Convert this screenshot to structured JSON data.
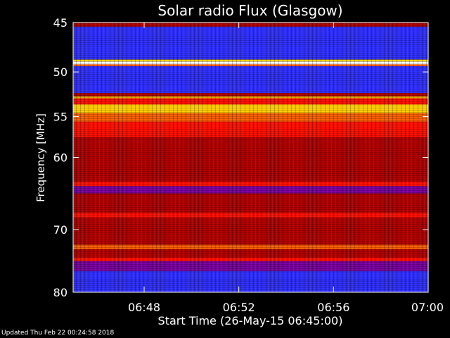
{
  "footer": "Updated Thu Feb 22 00:24:58 2018",
  "chart_data": {
    "type": "heatmap",
    "title": "Solar radio Flux (Glasgow)",
    "xlabel": "Start Time (26-May-15 06:45:00)",
    "ylabel": "Frequency [MHz]",
    "x_ticks": [
      "06:48",
      "06:52",
      "06:56",
      "07:00"
    ],
    "x_tick_values_min": [
      3,
      7,
      11,
      15
    ],
    "xlim_min": [
      0,
      15
    ],
    "y_ticks": [
      45,
      50,
      55,
      60,
      70,
      80
    ],
    "ylim": [
      45,
      80
    ],
    "y_scale": "log",
    "grid": false,
    "colormap": [
      "#00007a",
      "#0000d0",
      "#3030ff",
      "#7a00a0",
      "#b00000",
      "#ff1000",
      "#ff6000",
      "#ffd000",
      "#ffffff"
    ],
    "bands": [
      {
        "f_start": 45.0,
        "f_end": 45.4,
        "level": 0.45
      },
      {
        "f_start": 45.4,
        "f_end": 48.7,
        "level": 0.22
      },
      {
        "f_start": 48.7,
        "f_end": 48.9,
        "level": 0.9
      },
      {
        "f_start": 48.9,
        "f_end": 49.2,
        "level": 1.0
      },
      {
        "f_start": 49.2,
        "f_end": 49.4,
        "level": 0.8
      },
      {
        "f_start": 49.4,
        "f_end": 50.3,
        "level": 0.22
      },
      {
        "f_start": 50.3,
        "f_end": 51.3,
        "level": 0.3
      },
      {
        "f_start": 51.3,
        "f_end": 52.3,
        "level": 0.22
      },
      {
        "f_start": 52.3,
        "f_end": 52.7,
        "level": 0.55
      },
      {
        "f_start": 52.7,
        "f_end": 52.9,
        "level": 0.85
      },
      {
        "f_start": 52.9,
        "f_end": 53.6,
        "level": 0.62
      },
      {
        "f_start": 53.6,
        "f_end": 54.6,
        "level": 0.82
      },
      {
        "f_start": 54.6,
        "f_end": 55.6,
        "level": 0.75
      },
      {
        "f_start": 55.6,
        "f_end": 57.5,
        "level": 0.58
      },
      {
        "f_start": 57.5,
        "f_end": 60.5,
        "level": 0.55
      },
      {
        "f_start": 60.5,
        "f_end": 63.2,
        "level": 0.5
      },
      {
        "f_start": 63.2,
        "f_end": 63.8,
        "level": 0.68
      },
      {
        "f_start": 63.8,
        "f_end": 64.8,
        "level": 0.42
      },
      {
        "f_start": 64.8,
        "f_end": 67.5,
        "level": 0.45
      },
      {
        "f_start": 67.5,
        "f_end": 68.2,
        "level": 0.58
      },
      {
        "f_start": 68.2,
        "f_end": 72.3,
        "level": 0.5
      },
      {
        "f_start": 72.3,
        "f_end": 73.0,
        "level": 0.7
      },
      {
        "f_start": 73.0,
        "f_end": 74.3,
        "level": 0.45
      },
      {
        "f_start": 74.3,
        "f_end": 74.9,
        "level": 0.68
      },
      {
        "f_start": 74.9,
        "f_end": 76.5,
        "level": 0.42
      },
      {
        "f_start": 76.5,
        "f_end": 78.0,
        "level": 0.3
      },
      {
        "f_start": 78.0,
        "f_end": 80.0,
        "level": 0.25
      }
    ]
  }
}
